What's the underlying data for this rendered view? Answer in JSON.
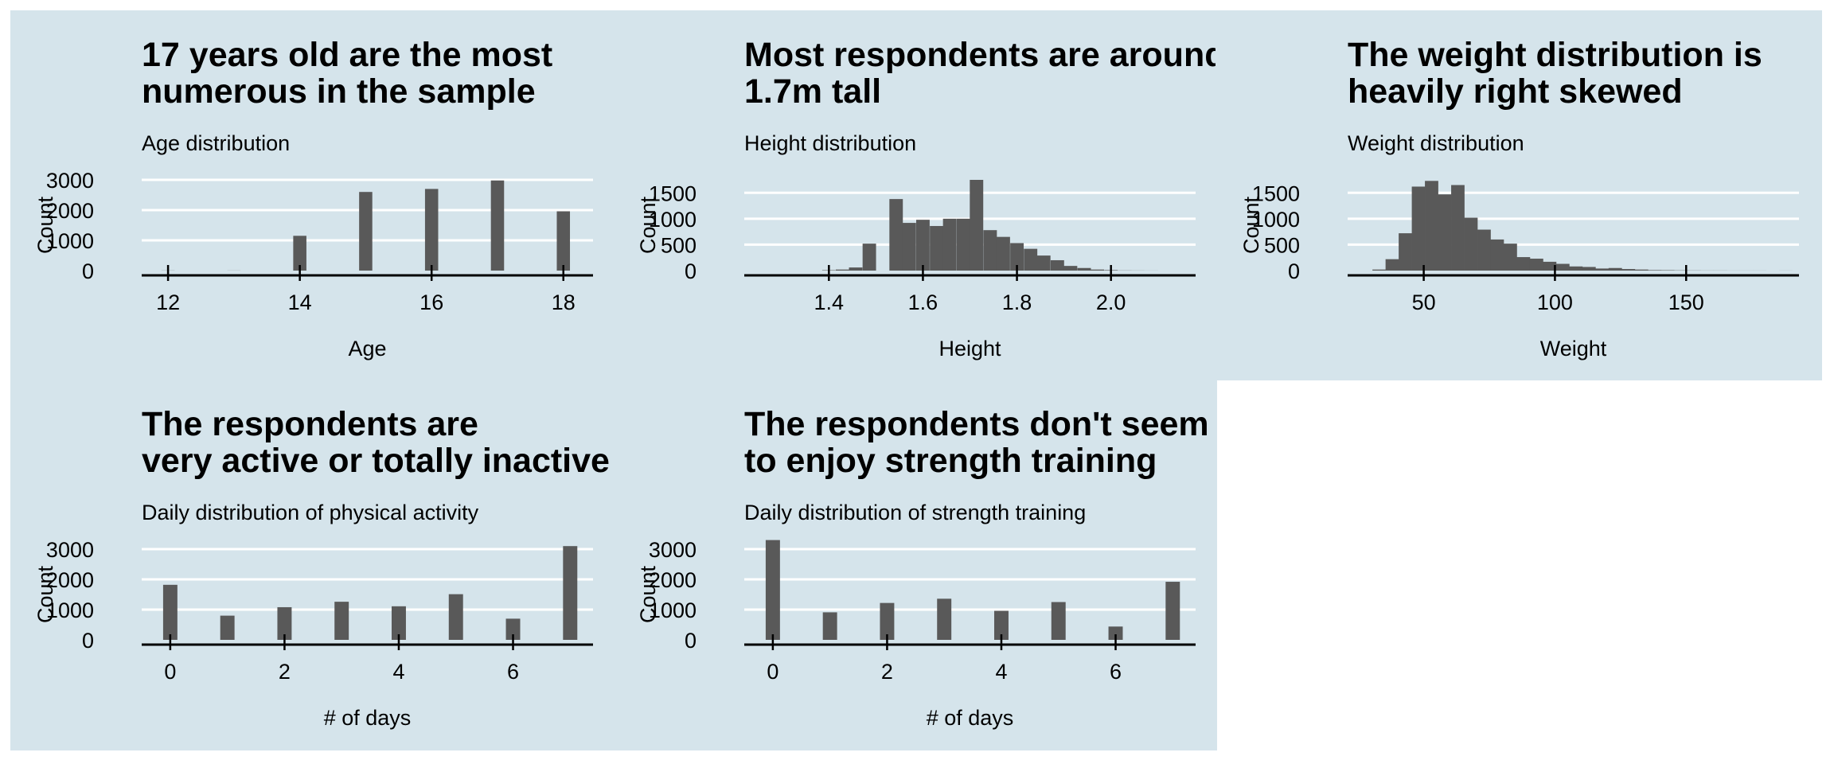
{
  "chart_data": [
    {
      "type": "bar",
      "title": [
        "17 years old are the most",
        " numerous in the sample"
      ],
      "subtitle": "Age distribution",
      "xlabel": "Age",
      "ylabel": "Count",
      "xlim": [
        11.6,
        18.45
      ],
      "ylim": [
        0,
        3000
      ],
      "xticks": [
        12,
        14,
        16,
        18
      ],
      "yticks": [
        0,
        1000,
        2000,
        3000
      ],
      "bar_width": 0.2,
      "x": [
        12,
        13,
        14,
        15,
        16,
        17,
        18
      ],
      "values": [
        4,
        3,
        1150,
        2600,
        2700,
        2980,
        1960
      ],
      "grid": true,
      "bar_color": "#595959"
    },
    {
      "type": "bar",
      "title": [
        "Most respondents are around",
        " 1.7m tall"
      ],
      "subtitle": "Height distribution",
      "xlabel": "Height",
      "ylabel": "Count",
      "xlim": [
        1.22,
        2.18
      ],
      "ylim": [
        0,
        1750
      ],
      "xticks": [
        1.4,
        1.6,
        1.8,
        2.0
      ],
      "xtick_labels": [
        "1.4",
        "1.6",
        "1.8",
        "2.0"
      ],
      "yticks": [
        0,
        500,
        1000,
        1500
      ],
      "bar_width": 0.0286,
      "x": [
        1.4,
        1.429,
        1.457,
        1.486,
        1.514,
        1.543,
        1.571,
        1.6,
        1.629,
        1.657,
        1.686,
        1.714,
        1.743,
        1.771,
        1.8,
        1.829,
        1.857,
        1.886,
        1.914,
        1.943,
        1.971,
        2.0,
        2.029,
        2.057,
        2.086
      ],
      "values": [
        8,
        20,
        60,
        520,
        0,
        1380,
        920,
        980,
        860,
        1000,
        1000,
        1750,
        780,
        650,
        530,
        420,
        290,
        200,
        90,
        50,
        20,
        10,
        3,
        2,
        1
      ],
      "grid": true,
      "bar_color": "#595959"
    },
    {
      "type": "bar",
      "title": [
        "The weight distribution is",
        " heavily right skewed"
      ],
      "subtitle": "Weight distribution",
      "xlabel": "Weight",
      "ylabel": "Count",
      "xlim": [
        21,
        193
      ],
      "ylim": [
        0,
        1750
      ],
      "xticks": [
        50,
        100,
        150
      ],
      "yticks": [
        0,
        500,
        1000,
        1500
      ],
      "bar_width": 5.1,
      "x": [
        33,
        38,
        43,
        48,
        53,
        58,
        63,
        68,
        73,
        78,
        83,
        88,
        93,
        98,
        103,
        108,
        113,
        118,
        123,
        128,
        133,
        138,
        143,
        148,
        153,
        158,
        163,
        168,
        173,
        178,
        183,
        188
      ],
      "values": [
        20,
        220,
        720,
        1620,
        1730,
        1470,
        1650,
        1020,
        790,
        600,
        520,
        260,
        230,
        170,
        130,
        80,
        70,
        40,
        50,
        30,
        20,
        10,
        8,
        5,
        3,
        2,
        2,
        1,
        1,
        1,
        0,
        1
      ],
      "grid": true,
      "bar_color": "#595959"
    },
    {
      "type": "bar",
      "title": [
        "The respondents are",
        " very active or totally inactive"
      ],
      "subtitle": "Daily distribution of physical activity",
      "xlabel": "# of days",
      "ylabel": "Count",
      "xlim": [
        -0.5,
        7.4
      ],
      "ylim": [
        0,
        3000
      ],
      "xticks": [
        0,
        2,
        4,
        6
      ],
      "yticks": [
        0,
        1000,
        2000,
        3000
      ],
      "bar_width": 0.25,
      "x": [
        0,
        1,
        2,
        3,
        4,
        5,
        6,
        7
      ],
      "values": [
        1820,
        800,
        1080,
        1260,
        1110,
        1510,
        700,
        3100
      ],
      "grid": true,
      "bar_color": "#595959"
    },
    {
      "type": "bar",
      "title": [
        "The respondents don't seem",
        " to enjoy strength training"
      ],
      "subtitle": "Daily distribution of strength training",
      "xlabel": "# of days",
      "ylabel": "Count",
      "xlim": [
        -0.5,
        7.4
      ],
      "ylim": [
        0,
        3000
      ],
      "xticks": [
        0,
        2,
        4,
        6
      ],
      "yticks": [
        0,
        1000,
        2000,
        3000
      ],
      "bar_width": 0.25,
      "x": [
        0,
        1,
        2,
        3,
        4,
        5,
        6,
        7
      ],
      "values": [
        3300,
        910,
        1220,
        1360,
        960,
        1250,
        440,
        1920
      ],
      "grid": true,
      "bar_color": "#595959"
    }
  ],
  "colors": {
    "panel_background": "#d5e4eb",
    "gridline": "#ffffff",
    "axis": "#000000"
  }
}
